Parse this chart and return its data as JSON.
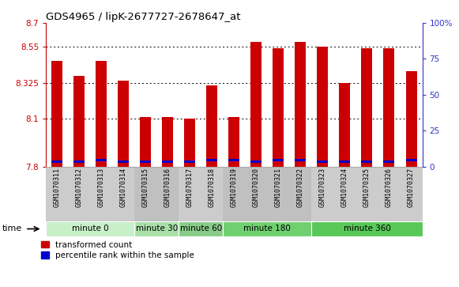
{
  "title": "GDS4965 / lipK-2677727-2678647_at",
  "samples": [
    "GSM1070311",
    "GSM1070312",
    "GSM1070313",
    "GSM1070314",
    "GSM1070315",
    "GSM1070316",
    "GSM1070317",
    "GSM1070318",
    "GSM1070319",
    "GSM1070320",
    "GSM1070321",
    "GSM1070322",
    "GSM1070323",
    "GSM1070324",
    "GSM1070325",
    "GSM1070326",
    "GSM1070327"
  ],
  "red_values": [
    8.46,
    8.37,
    8.46,
    8.34,
    8.11,
    8.11,
    8.1,
    8.31,
    8.11,
    8.58,
    8.54,
    8.58,
    8.55,
    8.325,
    8.54,
    8.54,
    8.4
  ],
  "blue_values": [
    7.83,
    7.83,
    7.84,
    7.83,
    7.83,
    7.83,
    7.83,
    7.84,
    7.84,
    7.83,
    7.84,
    7.84,
    7.83,
    7.83,
    7.83,
    7.83,
    7.84
  ],
  "ymin": 7.8,
  "ymax": 8.7,
  "yticks": [
    7.8,
    8.1,
    8.325,
    8.55,
    8.7
  ],
  "ytick_labels": [
    "7.8",
    "8.1",
    "8.325",
    "8.55",
    "8.7"
  ],
  "right_yticks": [
    0,
    25,
    50,
    75,
    100
  ],
  "right_ytick_labels": [
    "0",
    "25",
    "50",
    "75",
    "100%"
  ],
  "groups": [
    {
      "label": "minute 0",
      "start": 0,
      "end": 4,
      "color": "#c8f0c8"
    },
    {
      "label": "minute 30",
      "start": 4,
      "end": 6,
      "color": "#a8e0a8"
    },
    {
      "label": "minute 60",
      "start": 6,
      "end": 8,
      "color": "#88cc88"
    },
    {
      "label": "minute 180",
      "start": 8,
      "end": 12,
      "color": "#70d070"
    },
    {
      "label": "minute 360",
      "start": 12,
      "end": 17,
      "color": "#58c858"
    }
  ],
  "bar_width": 0.5,
  "bar_color": "#cc0000",
  "blue_color": "#0000cc",
  "left_axis_color": "#cc0000",
  "right_axis_color": "#3333cc",
  "legend_red": "transformed count",
  "legend_blue": "percentile rank within the sample"
}
